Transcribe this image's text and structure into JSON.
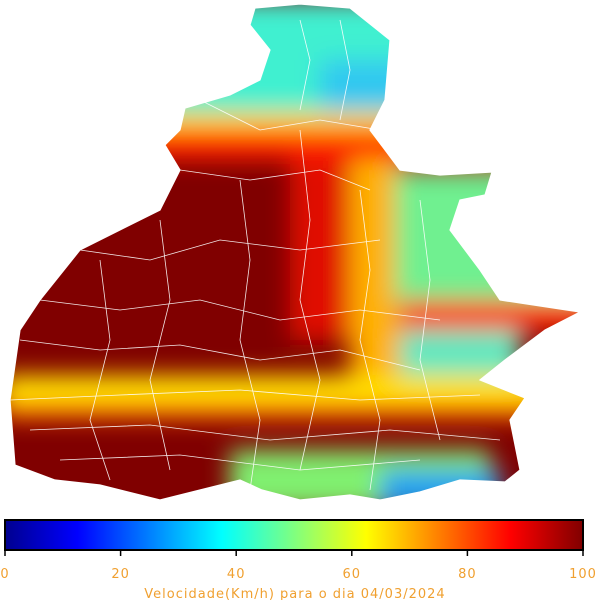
{
  "colorbar": {
    "lim": [
      0,
      100
    ],
    "ticks": [
      0,
      20,
      40,
      60,
      80,
      100
    ],
    "label": "Velocidade(Km/h) para o dia 04/03/2024"
  }
}
